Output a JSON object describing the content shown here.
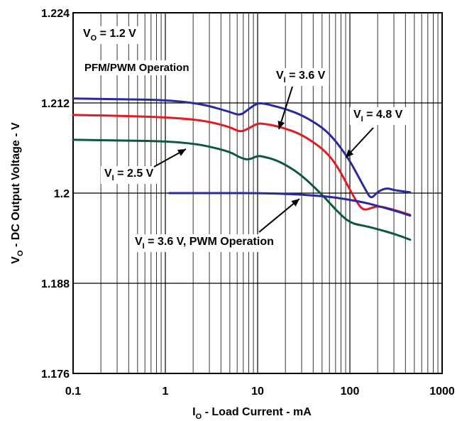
{
  "chart_data": {
    "type": "line",
    "title": "",
    "xlabel": {
      "main": "I",
      "sub": "O",
      "rest": " - Load Current - mA"
    },
    "ylabel": {
      "main": "V",
      "sub": "O",
      "rest": " - DC Output Voltage - V"
    },
    "x_scale": "log",
    "xlim": [
      0.1,
      1000
    ],
    "ylim": [
      1.176,
      1.224
    ],
    "x_ticks": [
      0.1,
      1,
      10,
      100,
      1000
    ],
    "x_tick_labels": [
      "0.1",
      "1",
      "10",
      "100",
      "1000"
    ],
    "y_ticks": [
      1.176,
      1.188,
      1.2,
      1.212,
      1.224
    ],
    "y_tick_labels": [
      "1.176",
      "1.188",
      "1.2",
      "1.212",
      "1.224"
    ],
    "grid": true,
    "series": [
      {
        "key": "vi48",
        "color": "#2a2aa0",
        "x": [
          0.1,
          0.3,
          1,
          2,
          3,
          5,
          6.5,
          8,
          10,
          12,
          15,
          20,
          30,
          50,
          70,
          100,
          120,
          150,
          170,
          200,
          250,
          300,
          450
        ],
        "y": [
          1.2126,
          1.2125,
          1.2124,
          1.212,
          1.2116,
          1.2108,
          1.2103,
          1.2112,
          1.212,
          1.2119,
          1.2116,
          1.2112,
          1.2104,
          1.2088,
          1.207,
          1.2043,
          1.2025,
          1.2003,
          1.1992,
          1.2002,
          1.2007,
          1.2004,
          1.2001
        ]
      },
      {
        "key": "vi36",
        "color": "#e01c24",
        "x": [
          0.1,
          0.3,
          1,
          2,
          3,
          5,
          6.5,
          8,
          10,
          12,
          15,
          20,
          30,
          50,
          70,
          100,
          120,
          140,
          170,
          200,
          300,
          450
        ],
        "y": [
          1.2104,
          1.2103,
          1.2101,
          1.2098,
          1.2095,
          1.2088,
          1.2081,
          1.2086,
          1.2093,
          1.2092,
          1.209,
          1.2086,
          1.2078,
          1.206,
          1.204,
          1.2005,
          1.1987,
          1.1977,
          1.198,
          1.1983,
          1.1978,
          1.1971
        ]
      },
      {
        "key": "vi25",
        "color": "#0e5a38",
        "x": [
          0.1,
          0.3,
          1,
          2,
          3,
          5,
          6.5,
          8,
          10,
          12,
          15,
          20,
          30,
          50,
          70,
          100,
          150,
          200,
          300,
          450
        ],
        "y": [
          1.2071,
          1.207,
          1.2069,
          1.2066,
          1.2062,
          1.2055,
          1.2047,
          1.2044,
          1.205,
          1.2048,
          1.2045,
          1.2038,
          1.2024,
          1.1998,
          1.1978,
          1.196,
          1.1956,
          1.1952,
          1.1946,
          1.1938
        ]
      },
      {
        "key": "pwm36",
        "color": "#2a2aa0",
        "x": [
          1.1,
          2,
          5,
          10,
          20,
          30,
          50,
          70,
          100,
          150,
          200,
          300,
          450
        ],
        "y": [
          1.2,
          1.2,
          1.2,
          1.2,
          1.1999,
          1.1998,
          1.1996,
          1.1994,
          1.1991,
          1.1987,
          1.1983,
          1.1977,
          1.197
        ]
      }
    ],
    "annotations": [
      {
        "key": "vo",
        "main": "V",
        "sub": "O",
        "rest": " = 1.2 V"
      },
      {
        "key": "mode",
        "text": "PFM/PWM Operation"
      },
      {
        "key": "vi36",
        "main": "V",
        "sub": "I",
        "rest": " = 3.6 V"
      },
      {
        "key": "vi48",
        "main": "V",
        "sub": "I",
        "rest": " = 4.8 V"
      },
      {
        "key": "vi25",
        "main": "V",
        "sub": "I",
        "rest": " = 2.5 V"
      },
      {
        "key": "pwm36",
        "main": "V",
        "sub": "I",
        "rest": " = 3.6 V, PWM Operation"
      }
    ]
  }
}
